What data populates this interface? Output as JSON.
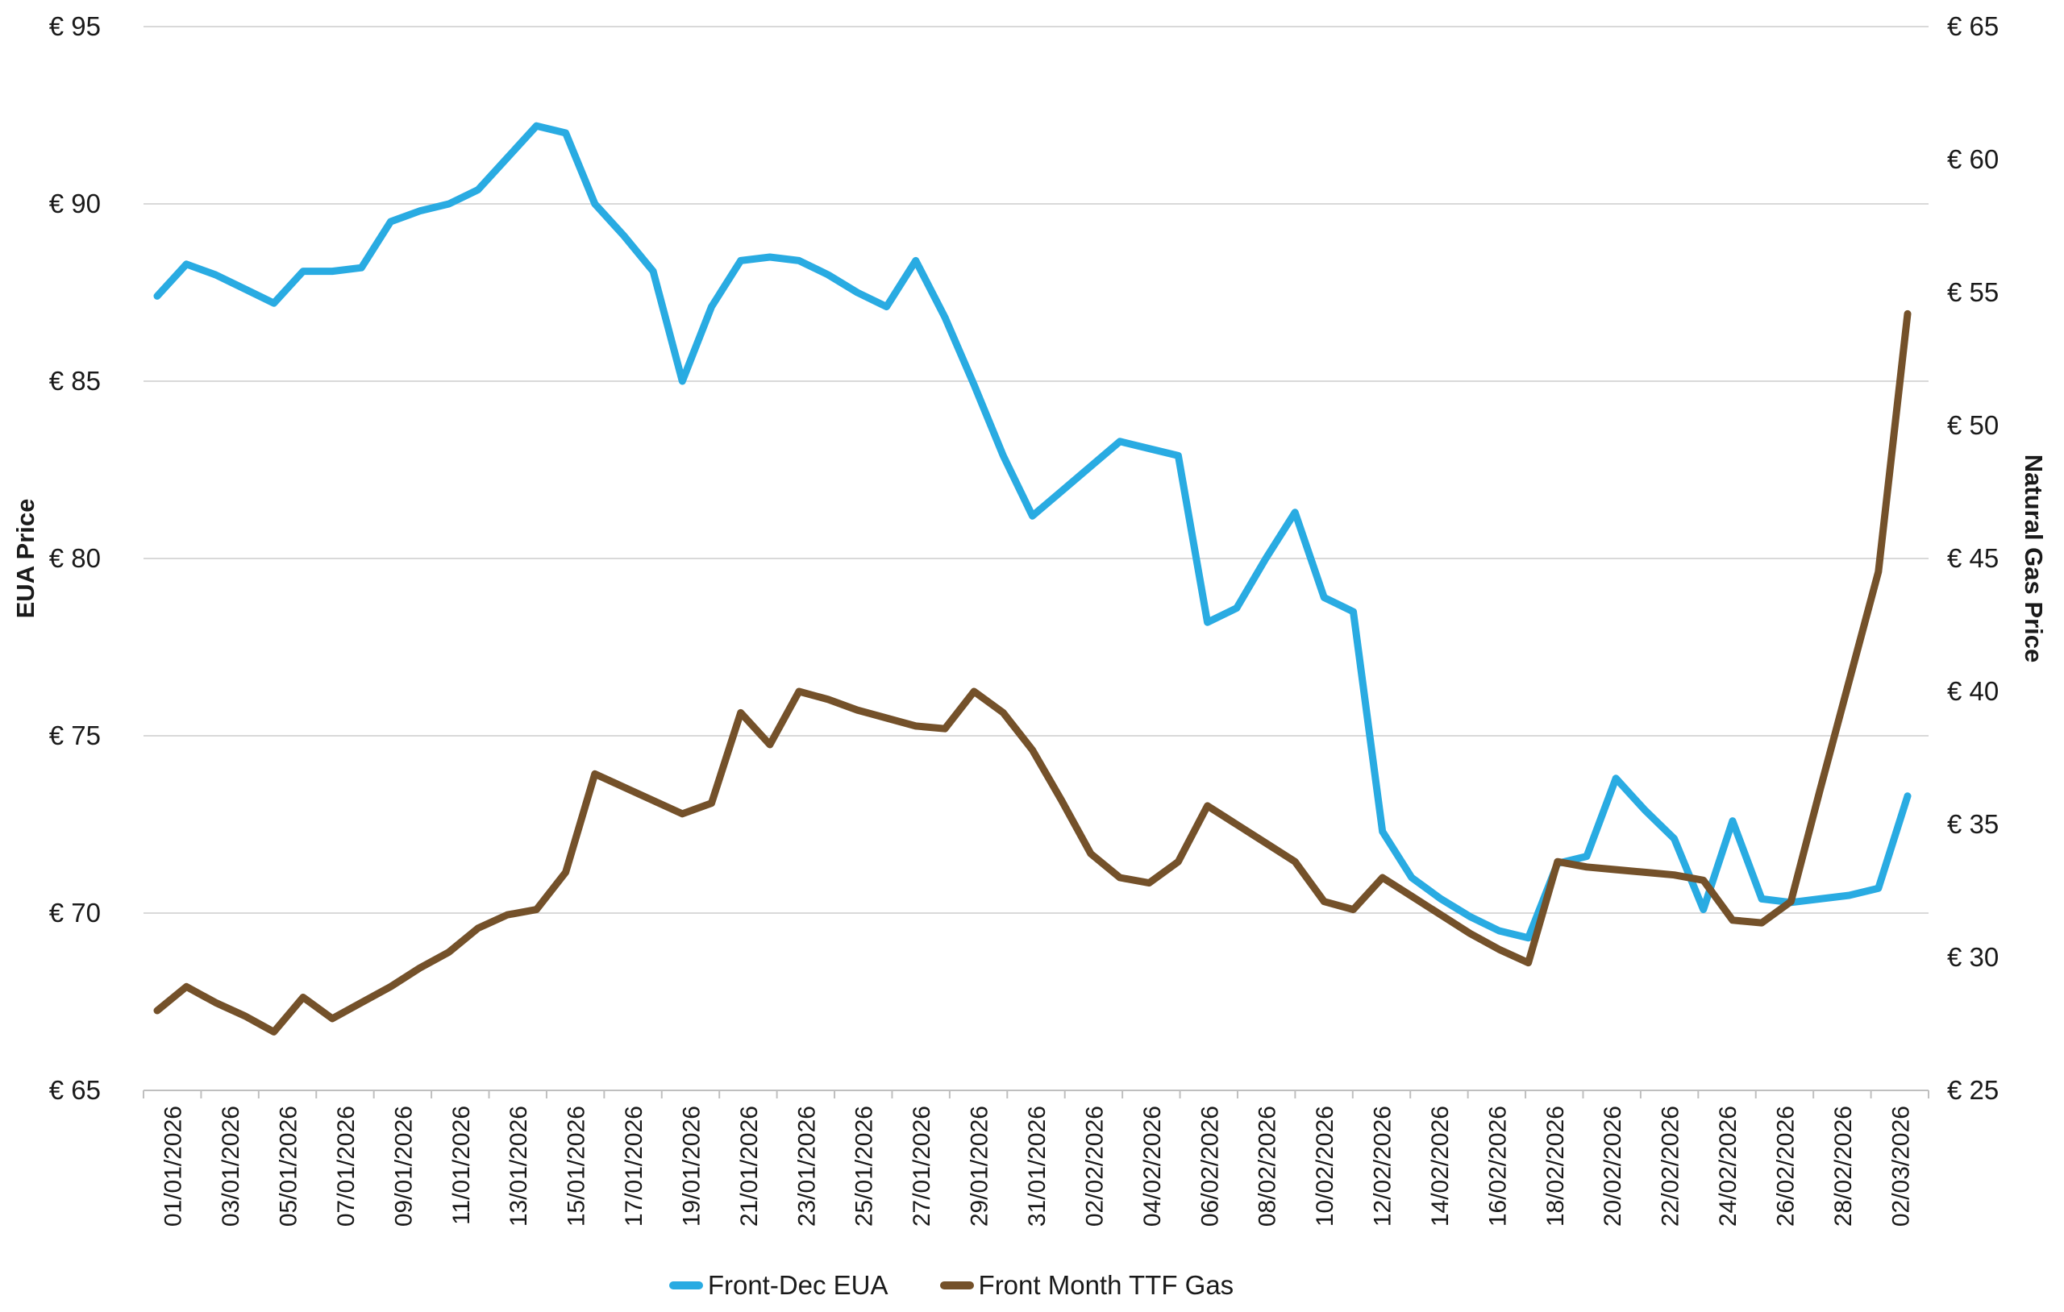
{
  "chart_data": {
    "type": "line",
    "title": "",
    "x": [
      "01/01/2026",
      "02/01/2026",
      "03/01/2026",
      "04/01/2026",
      "05/01/2026",
      "06/01/2026",
      "07/01/2026",
      "08/01/2026",
      "09/01/2026",
      "10/01/2026",
      "11/01/2026",
      "12/01/2026",
      "13/01/2026",
      "14/01/2026",
      "15/01/2026",
      "16/01/2026",
      "17/01/2026",
      "18/01/2026",
      "19/01/2026",
      "20/01/2026",
      "21/01/2026",
      "22/01/2026",
      "23/01/2026",
      "24/01/2026",
      "25/01/2026",
      "26/01/2026",
      "27/01/2026",
      "28/01/2026",
      "29/01/2026",
      "30/01/2026",
      "31/01/2026",
      "01/02/2026",
      "02/02/2026",
      "03/02/2026",
      "04/02/2026",
      "05/02/2026",
      "06/02/2026",
      "07/02/2026",
      "08/02/2026",
      "09/02/2026",
      "10/02/2026",
      "11/02/2026",
      "12/02/2026",
      "13/02/2026",
      "14/02/2026",
      "15/02/2026",
      "16/02/2026",
      "17/02/2026",
      "18/02/2026",
      "19/02/2026",
      "20/02/2026",
      "21/02/2026",
      "22/02/2026",
      "23/02/2026",
      "24/02/2026",
      "25/02/2026",
      "26/02/2026",
      "27/02/2026",
      "28/02/2026",
      "01/03/2026",
      "02/03/2026"
    ],
    "x_tick_labels": [
      "01/01/2026",
      "03/01/2026",
      "05/01/2026",
      "07/01/2026",
      "09/01/2026",
      "11/01/2026",
      "13/01/2026",
      "15/01/2026",
      "17/01/2026",
      "19/01/2026",
      "21/01/2026",
      "23/01/2026",
      "25/01/2026",
      "27/01/2026",
      "29/01/2026",
      "31/01/2026",
      "02/02/2026",
      "04/02/2026",
      "06/02/2026",
      "08/02/2026",
      "10/02/2026",
      "12/02/2026",
      "14/02/2026",
      "16/02/2026",
      "18/02/2026",
      "20/02/2026",
      "22/02/2026",
      "24/02/2026",
      "26/02/2026",
      "28/02/2026",
      "02/03/2026"
    ],
    "series": [
      {
        "name": "Front-Dec EUA",
        "axis": "left",
        "color": "#29ABE2",
        "values": [
          87.4,
          88.3,
          88.0,
          87.6,
          87.2,
          88.1,
          88.1,
          88.2,
          89.5,
          89.8,
          90.0,
          90.4,
          91.3,
          92.2,
          92.0,
          90.0,
          89.1,
          88.1,
          85.0,
          87.1,
          88.4,
          88.5,
          88.4,
          88.0,
          87.5,
          87.1,
          88.4,
          86.8,
          84.9,
          82.9,
          81.2,
          81.9,
          82.6,
          83.3,
          83.1,
          82.9,
          78.2,
          78.6,
          80.0,
          81.3,
          78.9,
          78.5,
          72.3,
          71.0,
          70.4,
          69.9,
          69.5,
          69.3,
          71.4,
          71.6,
          73.8,
          72.9,
          72.1,
          70.1,
          72.6,
          70.4,
          70.3,
          70.4,
          70.5,
          70.7,
          73.3
        ]
      },
      {
        "name": "Front Month TTF Gas",
        "axis": "right",
        "color": "#74512A",
        "values": [
          28.0,
          28.9,
          28.3,
          27.8,
          27.2,
          28.5,
          27.7,
          28.3,
          28.9,
          29.6,
          30.2,
          31.1,
          31.6,
          31.8,
          33.2,
          36.9,
          36.4,
          35.9,
          35.4,
          35.8,
          39.2,
          38.0,
          40.0,
          39.7,
          39.3,
          39.0,
          38.7,
          38.6,
          40.0,
          39.2,
          37.8,
          35.9,
          33.9,
          33.0,
          32.8,
          33.6,
          35.7,
          35.0,
          34.3,
          33.6,
          32.1,
          31.8,
          33.0,
          32.3,
          31.6,
          30.9,
          30.3,
          29.8,
          33.6,
          33.4,
          33.3,
          33.2,
          33.1,
          32.9,
          31.4,
          31.3,
          32.1,
          36.3,
          40.4,
          44.5,
          54.2
        ]
      }
    ],
    "left_axis": {
      "title": "EUA Price",
      "min": 65,
      "max": 95,
      "step": 5,
      "tick_labels": [
        "€ 95",
        "€ 90",
        "€ 85",
        "€ 80",
        "€ 75",
        "€ 70",
        "€ 65"
      ]
    },
    "right_axis": {
      "title": "Natural Gas Price",
      "min": 25,
      "max": 65,
      "step": 5,
      "tick_labels": [
        "€ 65",
        "€ 60",
        "€ 55",
        "€ 50",
        "€ 45",
        "€ 40",
        "€ 35",
        "€ 30",
        "€ 25"
      ]
    },
    "grid": true,
    "legend_position": "bottom",
    "colors": {
      "grid": "#d9d9d9",
      "axis": "#bfbfbf",
      "text": "#1a1a1a"
    }
  },
  "legend": {
    "items": [
      {
        "label": "Front-Dec EUA",
        "color": "#29ABE2"
      },
      {
        "label": "Front Month TTF Gas",
        "color": "#74512A"
      }
    ]
  }
}
